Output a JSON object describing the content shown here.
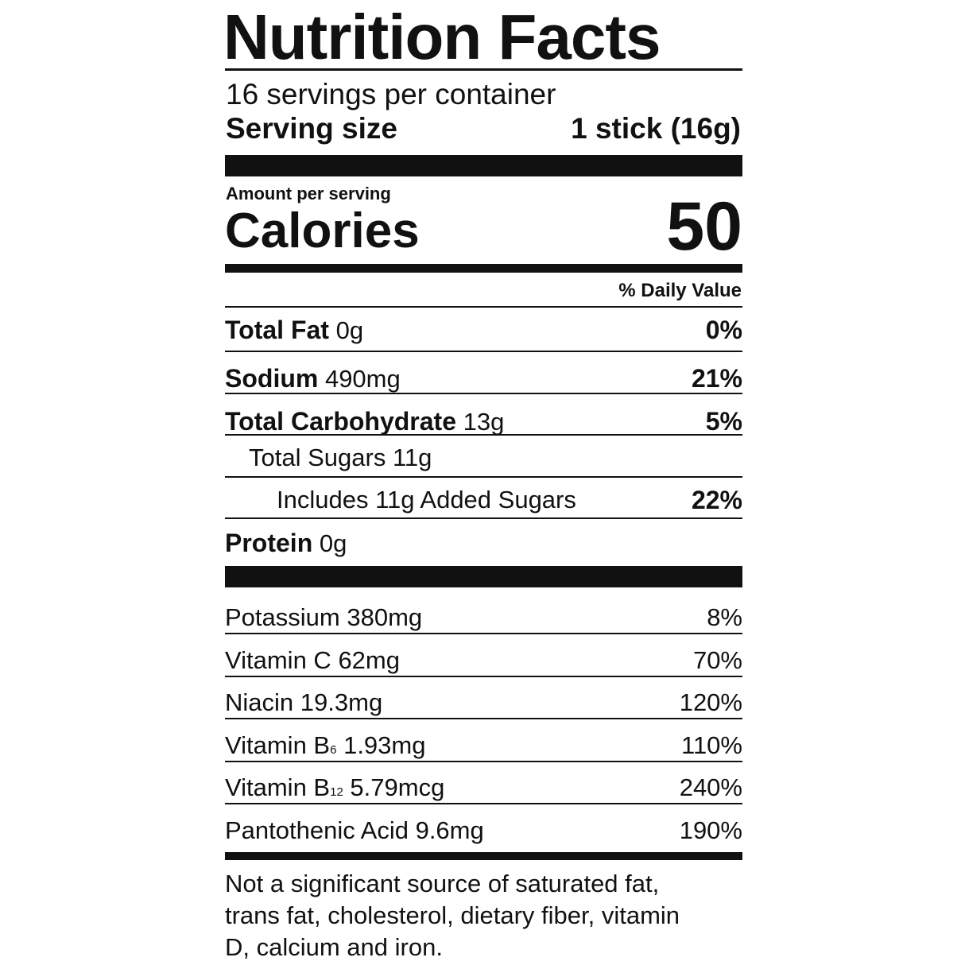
{
  "title": "Nutrition Facts",
  "servings_per_container": "16 servings per container",
  "serving_size_label": "Serving size",
  "serving_size_value": "1 stick (16g)",
  "amount_per_serving": "Amount per serving",
  "calories_label": "Calories",
  "calories_value": "50",
  "daily_value_header": "% Daily Value",
  "nutrients": [
    {
      "name": "Total Fat",
      "amount": "0g",
      "dv": "0%"
    },
    {
      "name": "Sodium",
      "amount": "490mg",
      "dv": "21%"
    },
    {
      "name": "Total Carbohydrate",
      "amount": "13g",
      "dv": "5%"
    },
    {
      "name": "Total Sugars",
      "amount": "11g",
      "dv": ""
    },
    {
      "name": "Includes 11g Added Sugars",
      "amount": "",
      "dv": "22%"
    },
    {
      "name": "Protein",
      "amount": "0g",
      "dv": ""
    }
  ],
  "micronutrients": [
    {
      "name": "Potassium",
      "sub": "",
      "amount": "380mg",
      "dv": "8%"
    },
    {
      "name": "Vitamin C",
      "sub": "",
      "amount": "62mg",
      "dv": "70%"
    },
    {
      "name": "Niacin",
      "sub": "",
      "amount": "19.3mg",
      "dv": "120%"
    },
    {
      "name": "Vitamin B",
      "sub": "6",
      "amount": "1.93mg",
      "dv": "110%"
    },
    {
      "name": "Vitamin B",
      "sub": "12",
      "amount": "5.79mcg",
      "dv": "240%"
    },
    {
      "name": "Pantothenic Acid",
      "sub": "",
      "amount": "9.6mg",
      "dv": "190%"
    }
  ],
  "footnote": [
    "Not a significant source of saturated fat,",
    "trans fat, cholesterol, dietary fiber, vitamin",
    "D, calcium and iron."
  ]
}
